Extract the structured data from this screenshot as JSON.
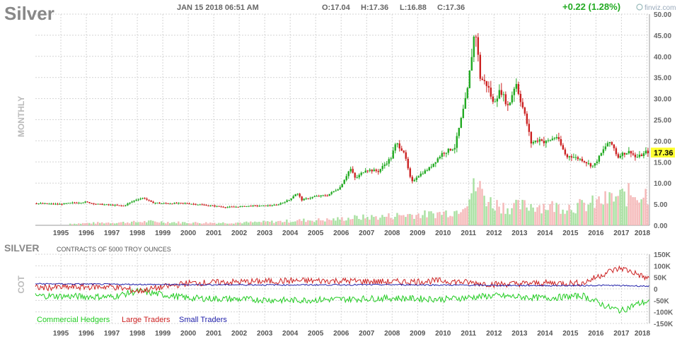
{
  "header": {
    "title": "Silver",
    "timestamp": "JAN 15 2018 06:51 AM",
    "ohlc": {
      "open": "O:17.04",
      "high": "H:17.36",
      "low": "L:16.88",
      "close": "C:17.36"
    },
    "change": "+0.22 (1.28%)",
    "brand": "finviz.com",
    "period_label": "MONTHLY",
    "last_price_tag": "17.36"
  },
  "cot": {
    "title": "SILVER",
    "subtitle": "CONTRACTS OF 5000 TROY OUNCES",
    "side_label": "COT",
    "legend": [
      {
        "name": "Commercial Hedgers",
        "color": "#22cc22"
      },
      {
        "name": "Large Traders",
        "color": "#cc2222"
      },
      {
        "name": "Small Traders",
        "color": "#2222aa"
      }
    ]
  },
  "colors": {
    "up": "#22aa22",
    "down": "#cc2222",
    "grid": "#cccccc",
    "vol_up": "#a8e0a0",
    "vol_down": "#f5b8b8",
    "price_tag_bg": "#ffff33",
    "change": "#22aa22"
  },
  "chart_data": [
    {
      "type": "candlestick",
      "interval": "monthly",
      "x_ticks": [
        "1995",
        "1996",
        "1997",
        "1998",
        "1999",
        "2000",
        "2001",
        "2002",
        "2003",
        "2004",
        "2005",
        "2006",
        "2007",
        "2008",
        "2009",
        "2010",
        "2011",
        "2012",
        "2013",
        "2014",
        "2015",
        "2016",
        "2017",
        "2018"
      ],
      "y_ticks": [
        "50.00",
        "45.00",
        "40.00",
        "35.00",
        "30.00",
        "25.00",
        "20.00",
        "15.00",
        "10.00",
        "5.00",
        "0.00"
      ],
      "ylim": [
        0,
        50
      ],
      "xlim": [
        1994.0,
        2018.1
      ],
      "last_close": 17.36,
      "price_anchors": [
        [
          1994.0,
          5.2
        ],
        [
          1995.0,
          5.0
        ],
        [
          1995.5,
          5.3
        ],
        [
          1996.0,
          5.5
        ],
        [
          1996.5,
          5.0
        ],
        [
          1997.0,
          4.8
        ],
        [
          1997.5,
          4.6
        ],
        [
          1998.0,
          6.1
        ],
        [
          1998.3,
          6.5
        ],
        [
          1998.6,
          5.4
        ],
        [
          1999.0,
          5.2
        ],
        [
          2000.0,
          5.2
        ],
        [
          2001.0,
          4.6
        ],
        [
          2001.5,
          4.3
        ],
        [
          2002.0,
          4.4
        ],
        [
          2002.5,
          4.6
        ],
        [
          2003.0,
          4.6
        ],
        [
          2003.5,
          4.8
        ],
        [
          2004.0,
          6.0
        ],
        [
          2004.3,
          7.7
        ],
        [
          2004.5,
          6.0
        ],
        [
          2005.0,
          6.8
        ],
        [
          2005.5,
          7.1
        ],
        [
          2006.0,
          9.0
        ],
        [
          2006.4,
          13.5
        ],
        [
          2006.6,
          11.0
        ],
        [
          2007.0,
          13.2
        ],
        [
          2007.5,
          12.8
        ],
        [
          2008.0,
          16.0
        ],
        [
          2008.2,
          19.5
        ],
        [
          2008.5,
          17.5
        ],
        [
          2008.8,
          10.0
        ],
        [
          2009.0,
          11.5
        ],
        [
          2009.5,
          13.5
        ],
        [
          2010.0,
          17.0
        ],
        [
          2010.5,
          18.5
        ],
        [
          2010.9,
          29.0
        ],
        [
          2011.0,
          32.0
        ],
        [
          2011.3,
          47.0
        ],
        [
          2011.5,
          35.0
        ],
        [
          2011.8,
          33.0
        ],
        [
          2012.0,
          29.0
        ],
        [
          2012.3,
          32.0
        ],
        [
          2012.6,
          28.0
        ],
        [
          2012.9,
          34.0
        ],
        [
          2013.0,
          31.5
        ],
        [
          2013.3,
          25.0
        ],
        [
          2013.5,
          19.5
        ],
        [
          2013.9,
          20.5
        ],
        [
          2014.0,
          19.5
        ],
        [
          2014.5,
          21.0
        ],
        [
          2014.9,
          16.0
        ],
        [
          2015.0,
          16.5
        ],
        [
          2015.5,
          15.5
        ],
        [
          2015.9,
          14.0
        ],
        [
          2016.0,
          14.5
        ],
        [
          2016.5,
          19.5
        ],
        [
          2016.7,
          19.0
        ],
        [
          2016.9,
          16.0
        ],
        [
          2017.0,
          16.8
        ],
        [
          2017.4,
          17.5
        ],
        [
          2017.6,
          16.0
        ],
        [
          2017.9,
          16.8
        ],
        [
          2018.0,
          17.36
        ]
      ]
    },
    {
      "type": "bar",
      "name": "volume",
      "values_by_year": [
        [
          1995.5,
          0.4
        ],
        [
          1996.5,
          0.6
        ],
        [
          1997.5,
          0.7
        ],
        [
          1998.5,
          0.9
        ],
        [
          1999.5,
          0.7
        ],
        [
          2000.5,
          0.6
        ],
        [
          2001.5,
          0.6
        ],
        [
          2002.5,
          0.7
        ],
        [
          2003.5,
          0.9
        ],
        [
          2004.5,
          1.2
        ],
        [
          2005.5,
          1.3
        ],
        [
          2006.5,
          1.8
        ],
        [
          2007.5,
          2.0
        ],
        [
          2008.5,
          2.5
        ],
        [
          2009.5,
          2.6
        ],
        [
          2010.5,
          3.4
        ],
        [
          2011.3,
          9.5
        ],
        [
          2011.8,
          5.5
        ],
        [
          2012.5,
          4.2
        ],
        [
          2013.5,
          4.8
        ],
        [
          2014.5,
          4.4
        ],
        [
          2015.5,
          4.6
        ],
        [
          2016.5,
          6.2
        ],
        [
          2017.5,
          7.5
        ]
      ]
    },
    {
      "type": "line",
      "name_label": "COT",
      "y_ticks": [
        "150K",
        "100K",
        "50K",
        "0",
        "-50K",
        "-100K",
        "-150K"
      ],
      "ylim": [
        -150000,
        150000
      ],
      "start_year": 1994.0,
      "series": [
        {
          "name": "Commercial Hedgers",
          "anchors": [
            [
              1994.0,
              -30000
            ],
            [
              1997.0,
              -35000
            ],
            [
              1998.0,
              -10000
            ],
            [
              2000.0,
              -40000
            ],
            [
              2002.0,
              -45000
            ],
            [
              2004.0,
              -50000
            ],
            [
              2006.0,
              -45000
            ],
            [
              2008.0,
              -40000
            ],
            [
              2010.0,
              -45000
            ],
            [
              2012.0,
              -30000
            ],
            [
              2014.0,
              -40000
            ],
            [
              2015.5,
              -30000
            ],
            [
              2016.5,
              -80000
            ],
            [
              2017.0,
              -95000
            ],
            [
              2017.5,
              -70000
            ],
            [
              2018.0,
              -55000
            ]
          ]
        },
        {
          "name": "Large Traders",
          "anchors": [
            [
              1994.0,
              5000
            ],
            [
              1997.0,
              10000
            ],
            [
              1998.0,
              -10000
            ],
            [
              2000.0,
              25000
            ],
            [
              2002.0,
              30000
            ],
            [
              2004.0,
              35000
            ],
            [
              2006.0,
              35000
            ],
            [
              2008.0,
              30000
            ],
            [
              2010.0,
              35000
            ],
            [
              2012.0,
              20000
            ],
            [
              2014.0,
              25000
            ],
            [
              2015.5,
              25000
            ],
            [
              2016.5,
              75000
            ],
            [
              2017.0,
              90000
            ],
            [
              2017.5,
              70000
            ],
            [
              2018.0,
              45000
            ]
          ]
        },
        {
          "name": "Small Traders",
          "anchors": [
            [
              1994.0,
              22000
            ],
            [
              1997.0,
              20000
            ],
            [
              2000.0,
              18000
            ],
            [
              2004.0,
              17000
            ],
            [
              2008.0,
              18000
            ],
            [
              2012.0,
              15000
            ],
            [
              2015.0,
              14000
            ],
            [
              2016.5,
              15000
            ],
            [
              2018.0,
              12000
            ]
          ]
        }
      ]
    }
  ]
}
